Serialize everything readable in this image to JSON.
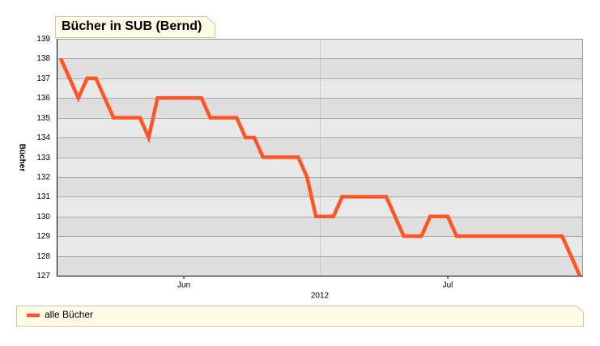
{
  "chart_data": {
    "type": "line",
    "title": "Bücher in SUB (Bernd)",
    "ylabel": "Bücher",
    "x_group_label": "2012",
    "categories": [
      null,
      null,
      null,
      null,
      null,
      null,
      null,
      null,
      null,
      null,
      null,
      null,
      null,
      null,
      "Jun",
      null,
      null,
      null,
      null,
      null,
      null,
      null,
      null,
      null,
      null,
      null,
      null,
      null,
      null,
      null,
      null,
      null,
      null,
      null,
      null,
      null,
      null,
      null,
      null,
      null,
      null,
      null,
      null,
      null,
      "Jul",
      null,
      null,
      null,
      null,
      null,
      null,
      null,
      null,
      null,
      null,
      null,
      null,
      null,
      null,
      null
    ],
    "series": [
      {
        "name": "alle Bücher",
        "color": "#ff5526",
        "values": [
          138,
          137,
          136,
          137,
          137,
          136,
          135,
          135,
          135,
          135,
          134,
          136,
          136,
          136,
          136,
          136,
          136,
          135,
          135,
          135,
          135,
          134,
          134,
          133,
          133,
          133,
          133,
          133,
          132,
          130,
          130,
          130,
          131,
          131,
          131,
          131,
          131,
          131,
          130,
          129,
          129,
          129,
          130,
          130,
          130,
          129,
          129,
          129,
          129,
          129,
          129,
          129,
          129,
          129,
          129,
          129,
          129,
          129,
          128,
          127
        ]
      }
    ],
    "ylim": [
      127,
      139
    ],
    "yticks": [
      127,
      128,
      129,
      130,
      131,
      132,
      133,
      134,
      135,
      136,
      137,
      138,
      139
    ],
    "grid": true
  }
}
